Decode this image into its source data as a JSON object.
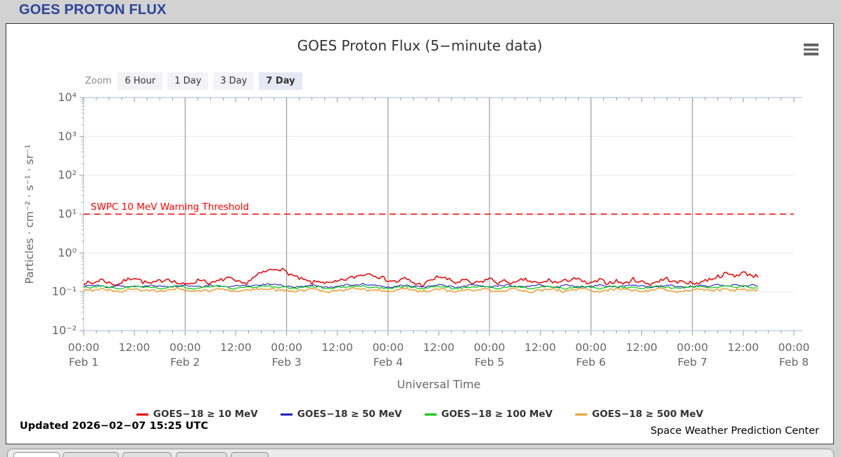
{
  "header": {
    "title": "GOES PROTON FLUX"
  },
  "toolbar": {
    "zoom_label": "Zoom",
    "ranges": [
      "6 Hour",
      "1 Day",
      "3 Day",
      "7 Day"
    ],
    "selected_range": "7 Day"
  },
  "chart_data": {
    "type": "line",
    "title": "GOES Proton Flux (5−minute data)",
    "xlabel": "Universal Time",
    "ylabel": "Particles · cm⁻² · s⁻¹ · sr⁻¹",
    "x_axis": {
      "start": "Feb 1 00:00",
      "end": "Feb 8 00:00",
      "tick_interval_hours": 12,
      "ticks": [
        {
          "time": "00:00",
          "date": "Feb 1"
        },
        {
          "time": "12:00"
        },
        {
          "time": "00:00",
          "date": "Feb 2"
        },
        {
          "time": "12:00"
        },
        {
          "time": "00:00",
          "date": "Feb 3"
        },
        {
          "time": "12:00"
        },
        {
          "time": "00:00",
          "date": "Feb 4"
        },
        {
          "time": "12:00"
        },
        {
          "time": "00:00",
          "date": "Feb 5"
        },
        {
          "time": "12:00"
        },
        {
          "time": "00:00",
          "date": "Feb 6"
        },
        {
          "time": "12:00"
        },
        {
          "time": "00:00",
          "date": "Feb 7"
        },
        {
          "time": "12:00"
        },
        {
          "time": "00:00",
          "date": "Feb 8"
        }
      ]
    },
    "y_axis": {
      "scale": "log",
      "min": 0.01,
      "max": 10000,
      "tick_labels": [
        "10⁴",
        "10³",
        "10²",
        "10¹",
        "10⁰",
        "10⁻¹",
        "10⁻²"
      ]
    },
    "threshold": {
      "label": "SWPC 10 MeV Warning Threshold",
      "value": 10,
      "color": "#ff0000",
      "style": "dashed"
    },
    "sample_interval_hours": 2,
    "data_end_hour": 159.5,
    "series": [
      {
        "name": "GOES−18 ≥ 10 MeV",
        "color": "#ee0000",
        "width": 1.5,
        "jitter": 0.12,
        "values": [
          0.18,
          0.16,
          0.21,
          0.17,
          0.15,
          0.2,
          0.24,
          0.18,
          0.16,
          0.19,
          0.22,
          0.17,
          0.15,
          0.18,
          0.21,
          0.16,
          0.19,
          0.23,
          0.18,
          0.16,
          0.22,
          0.3,
          0.36,
          0.41,
          0.32,
          0.24,
          0.2,
          0.17,
          0.19,
          0.16,
          0.18,
          0.21,
          0.24,
          0.28,
          0.3,
          0.24,
          0.2,
          0.18,
          0.22,
          0.17,
          0.15,
          0.19,
          0.25,
          0.21,
          0.17,
          0.2,
          0.16,
          0.18,
          0.22,
          0.17,
          0.19,
          0.16,
          0.21,
          0.18,
          0.16,
          0.2,
          0.17,
          0.19,
          0.23,
          0.18,
          0.16,
          0.2,
          0.17,
          0.19,
          0.16,
          0.21,
          0.18,
          0.16,
          0.19,
          0.22,
          0.17,
          0.19,
          0.16,
          0.18,
          0.21,
          0.25,
          0.29,
          0.26,
          0.31,
          0.27,
          0.24
        ]
      },
      {
        "name": "GOES−18 ≥ 50 MeV",
        "color": "#2020cc",
        "width": 1.1,
        "jitter": 0.05,
        "values": [
          0.14,
          0.15,
          0.14,
          0.13,
          0.15,
          0.14,
          0.13,
          0.14,
          0.15,
          0.14,
          0.13,
          0.14,
          0.15,
          0.14,
          0.13,
          0.15,
          0.14,
          0.13,
          0.14,
          0.15,
          0.14,
          0.15,
          0.16,
          0.15,
          0.14,
          0.13,
          0.14,
          0.15,
          0.14,
          0.13,
          0.14,
          0.15,
          0.15,
          0.16,
          0.15,
          0.14,
          0.13,
          0.14,
          0.15,
          0.14,
          0.13,
          0.14,
          0.15,
          0.14,
          0.13,
          0.14,
          0.15,
          0.14,
          0.13,
          0.14,
          0.15,
          0.14,
          0.13,
          0.14,
          0.15,
          0.14,
          0.13,
          0.15,
          0.14,
          0.13,
          0.14,
          0.15,
          0.14,
          0.13,
          0.14,
          0.15,
          0.14,
          0.13,
          0.14,
          0.15,
          0.14,
          0.13,
          0.14,
          0.15,
          0.14,
          0.15,
          0.14,
          0.15,
          0.14,
          0.15,
          0.14
        ]
      },
      {
        "name": "GOES−18 ≥ 100 MeV",
        "color": "#00c800",
        "width": 1.2,
        "jitter": 0.05,
        "values": [
          0.13,
          0.13,
          0.14,
          0.13,
          0.12,
          0.13,
          0.14,
          0.13,
          0.13,
          0.12,
          0.13,
          0.14,
          0.13,
          0.12,
          0.13,
          0.13,
          0.14,
          0.13,
          0.12,
          0.13,
          0.13,
          0.14,
          0.14,
          0.13,
          0.13,
          0.12,
          0.13,
          0.14,
          0.13,
          0.12,
          0.13,
          0.13,
          0.14,
          0.14,
          0.13,
          0.13,
          0.12,
          0.13,
          0.14,
          0.13,
          0.12,
          0.13,
          0.14,
          0.13,
          0.12,
          0.13,
          0.13,
          0.14,
          0.13,
          0.12,
          0.13,
          0.14,
          0.13,
          0.12,
          0.13,
          0.14,
          0.13,
          0.12,
          0.13,
          0.14,
          0.13,
          0.12,
          0.13,
          0.14,
          0.13,
          0.13,
          0.12,
          0.13,
          0.14,
          0.13,
          0.12,
          0.13,
          0.13,
          0.14,
          0.13,
          0.13,
          0.14,
          0.13,
          0.14,
          0.13,
          0.13
        ]
      },
      {
        "name": "GOES−18 ≥ 500 MeV",
        "color": "#eda23a",
        "width": 1.6,
        "jitter": 0.07,
        "values": [
          0.11,
          0.11,
          0.12,
          0.11,
          0.1,
          0.11,
          0.12,
          0.11,
          0.11,
          0.1,
          0.11,
          0.12,
          0.11,
          0.1,
          0.11,
          0.11,
          0.12,
          0.11,
          0.1,
          0.11,
          0.11,
          0.12,
          0.12,
          0.11,
          0.11,
          0.1,
          0.11,
          0.12,
          0.11,
          0.1,
          0.11,
          0.11,
          0.12,
          0.12,
          0.11,
          0.11,
          0.1,
          0.11,
          0.12,
          0.11,
          0.1,
          0.11,
          0.12,
          0.11,
          0.1,
          0.11,
          0.11,
          0.12,
          0.11,
          0.1,
          0.11,
          0.12,
          0.11,
          0.1,
          0.11,
          0.12,
          0.11,
          0.1,
          0.11,
          0.12,
          0.11,
          0.1,
          0.11,
          0.12,
          0.11,
          0.11,
          0.1,
          0.11,
          0.12,
          0.11,
          0.1,
          0.11,
          0.11,
          0.12,
          0.11,
          0.11,
          0.12,
          0.11,
          0.12,
          0.11,
          0.11
        ]
      }
    ]
  },
  "footer": {
    "updated": "Updated 2026−02−07 15:25 UTC",
    "source": "Space Weather Prediction Center"
  }
}
